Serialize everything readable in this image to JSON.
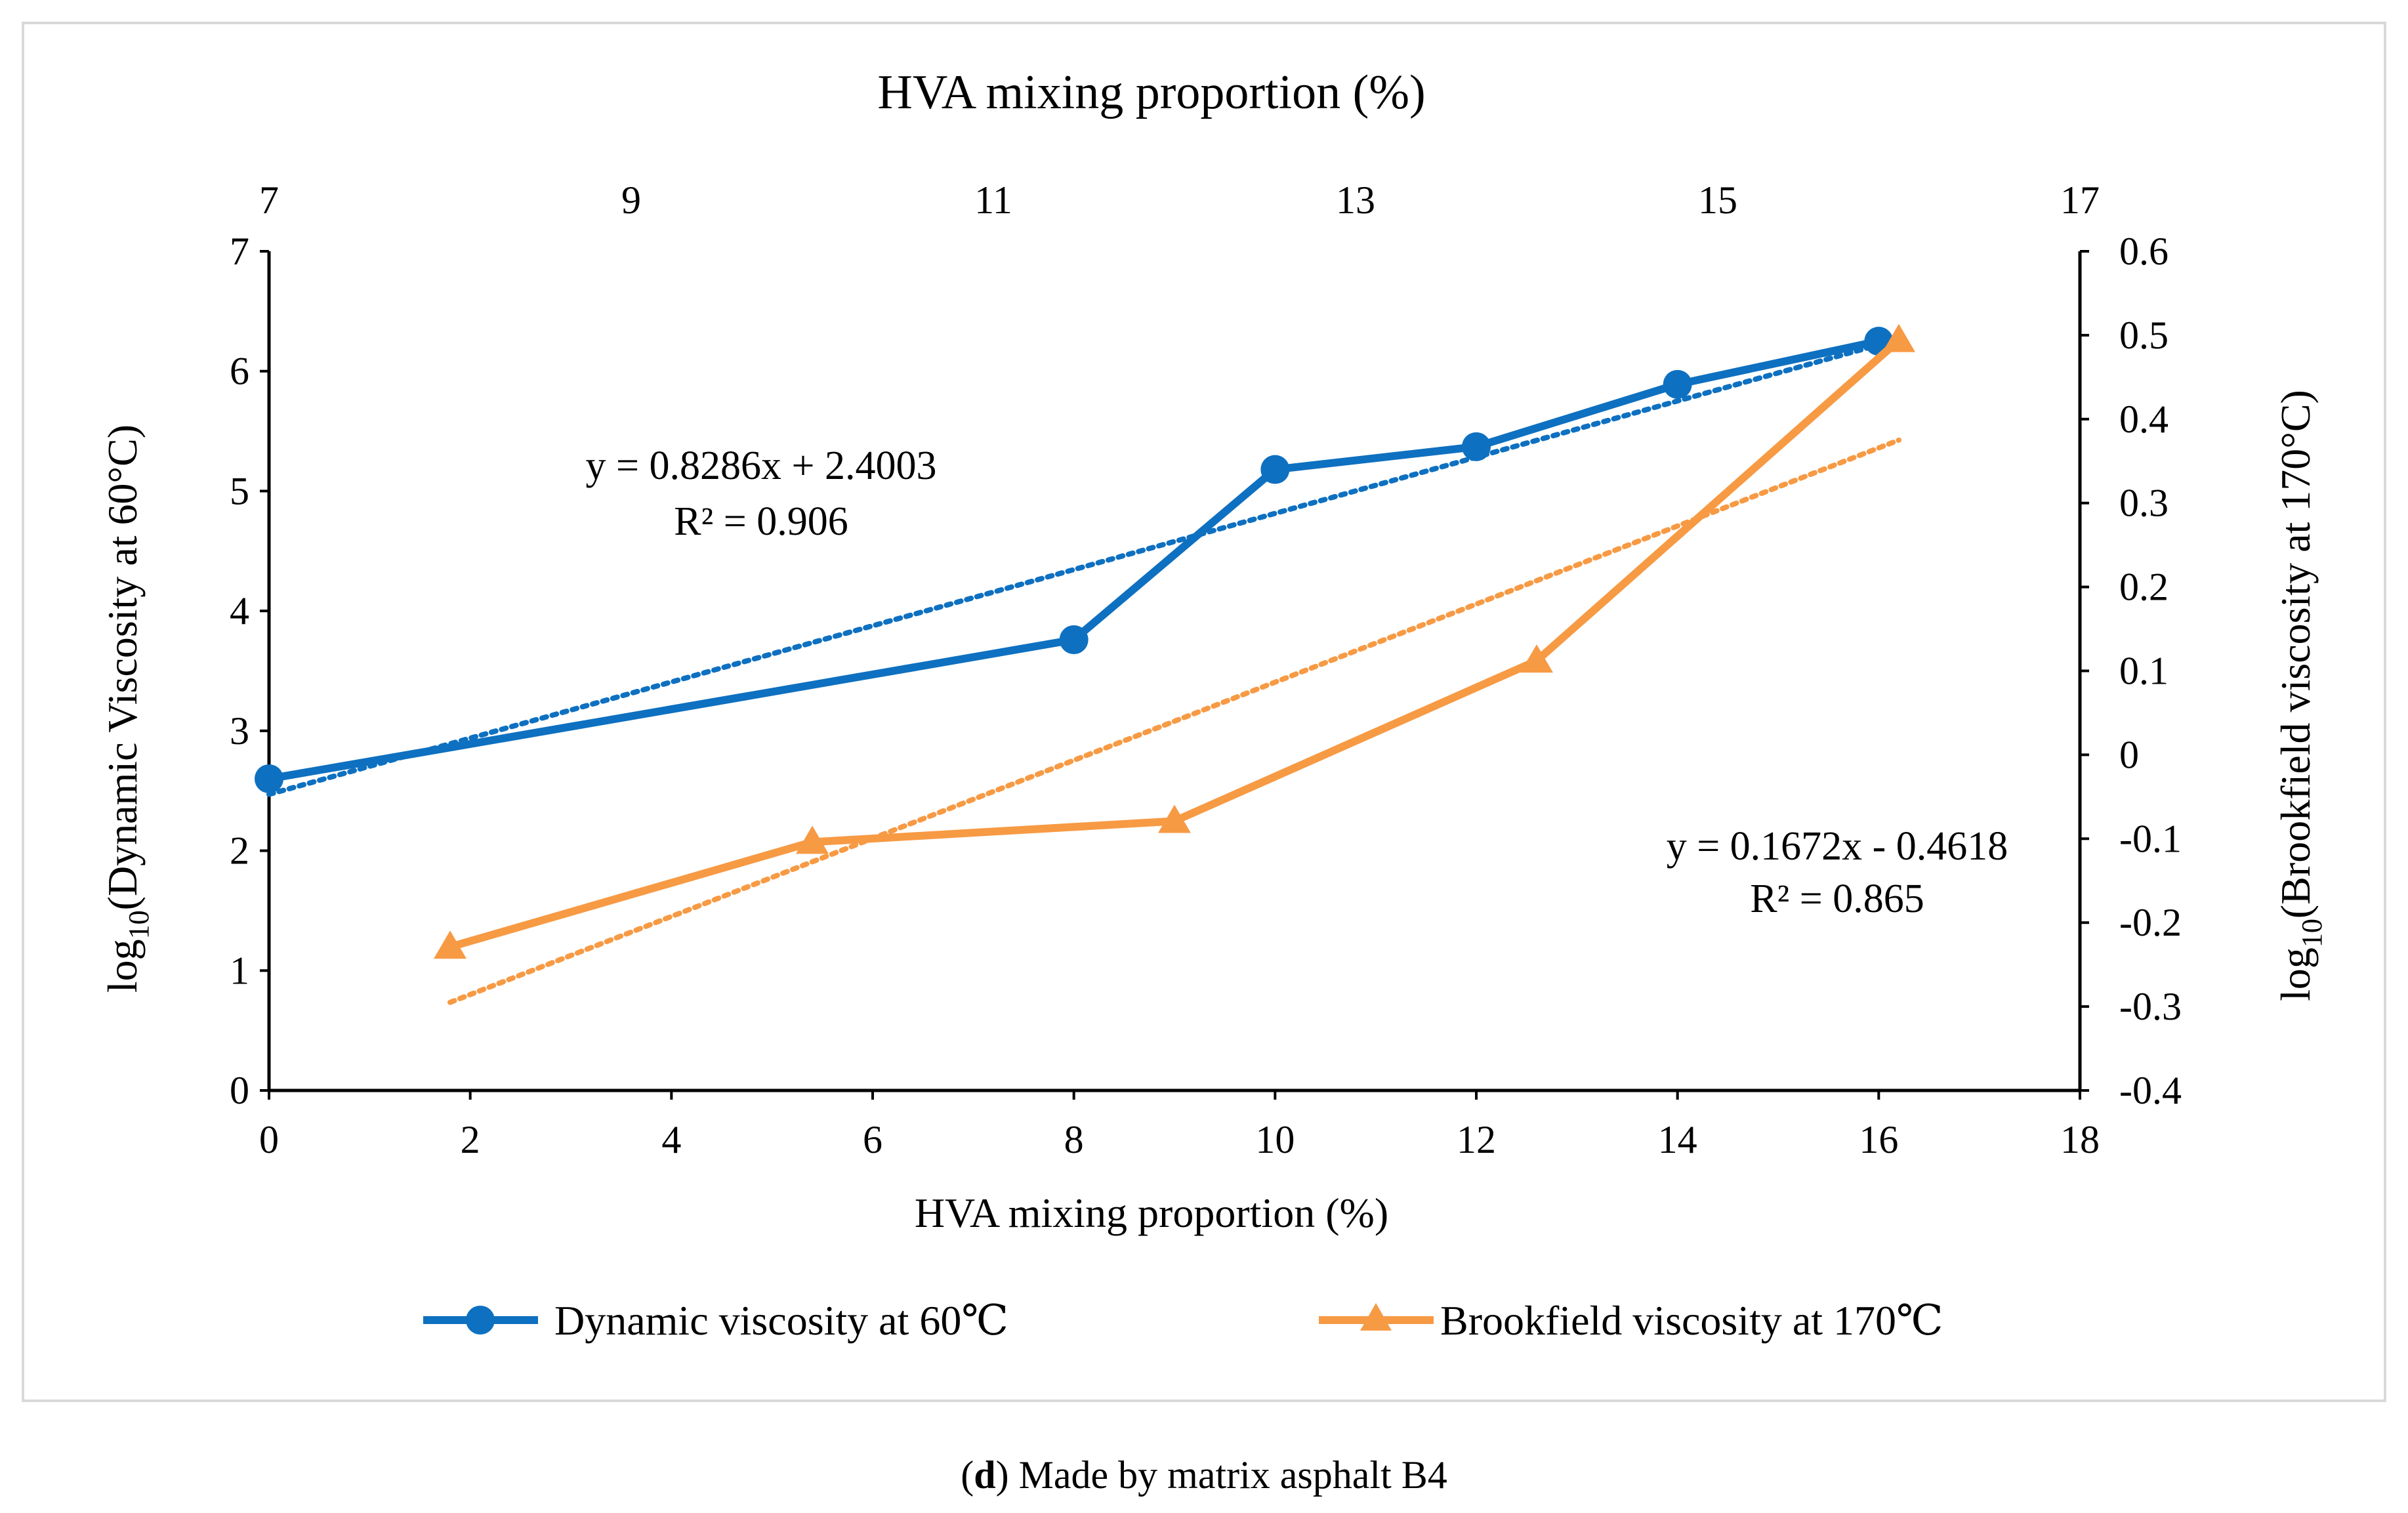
{
  "chart_data": {
    "type": "line",
    "top_axis_title": "HVA mixing proportion (%)",
    "top_ticks": [
      "7",
      "9",
      "11",
      "13",
      "15",
      "17"
    ],
    "xlabel": "HVA mixing proportion (%)",
    "x_ticks": [
      "0",
      "2",
      "4",
      "6",
      "8",
      "10",
      "12",
      "14",
      "16",
      "18"
    ],
    "xlim": [
      0,
      18
    ],
    "ylabel_left": {
      "prefix": "log",
      "sub": "10",
      "rest": "(Dynamic Viscosity at 60°C)"
    },
    "y_left_ticks": [
      "0",
      "1",
      "2",
      "3",
      "4",
      "5",
      "6",
      "7"
    ],
    "ylim_left": [
      0,
      7
    ],
    "ylabel_right": {
      "prefix": "log",
      "sub": "10",
      "rest": "(Brookfield viscosity at 170°C)"
    },
    "y_right_ticks": [
      "-0.4",
      "-0.3",
      "-0.2",
      "-0.1",
      "0",
      "0.1",
      "0.2",
      "0.3",
      "0.4",
      "0.5",
      "0.6"
    ],
    "ylim_right": [
      -0.4,
      0.6
    ],
    "series": [
      {
        "name": "Dynamic viscosity at 60℃",
        "axis": "left",
        "color": "#0E70C0",
        "marker": "circle",
        "x": [
          0,
          8,
          10,
          12,
          14,
          16
        ],
        "y": [
          2.6,
          3.76,
          5.18,
          5.37,
          5.89,
          6.25
        ]
      },
      {
        "name": "Brookfield viscosity at 170℃",
        "axis": "right",
        "color": "#F79A44",
        "marker": "triangle",
        "x": [
          1.8,
          5.4,
          9.0,
          12.6,
          16.2
        ],
        "y": [
          -0.229,
          -0.104,
          -0.079,
          0.112,
          0.494
        ]
      }
    ],
    "trendlines": [
      {
        "series": "Dynamic viscosity at 60℃",
        "equation": "y = 0.8286x + 2.4003",
        "r2": "R² = 0.906",
        "x": [
          0,
          16
        ],
        "y": [
          2.47,
          6.22
        ]
      },
      {
        "series": "Brookfield viscosity at 170℃",
        "equation": "y = 0.1672x - 0.4618",
        "r2": "R² = 0.865",
        "x": [
          1.8,
          16.2
        ],
        "y": [
          -0.295,
          0.375
        ]
      }
    ],
    "grid": false,
    "legend_position": "bottom"
  },
  "caption": {
    "bold": "d",
    "open": "(",
    "close": ")",
    "text": " Made by matrix asphalt B4"
  }
}
